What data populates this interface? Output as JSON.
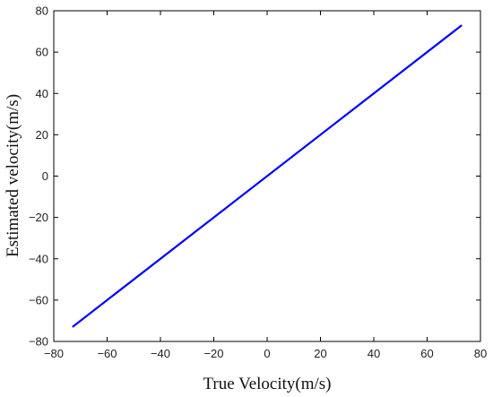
{
  "chart_data": {
    "type": "line",
    "title": "",
    "xlabel": "True Velocity(m/s)",
    "ylabel": "Estimated velocity(m/s)",
    "xlim": [
      -80,
      80
    ],
    "ylim": [
      -80,
      80
    ],
    "xticks": [
      -80,
      -60,
      -40,
      -20,
      0,
      20,
      40,
      60,
      80
    ],
    "yticks": [
      -80,
      -60,
      -40,
      -20,
      0,
      20,
      40,
      60,
      80
    ],
    "xtick_labels": [
      "−80",
      "−60",
      "−40",
      "−20",
      "0",
      "20",
      "40",
      "60",
      "80"
    ],
    "ytick_labels": [
      "−80",
      "−60",
      "−40",
      "−20",
      "0",
      "20",
      "40",
      "60",
      "80"
    ],
    "grid": false,
    "series": [
      {
        "color": "#0000ff",
        "x": [
          -73,
          73
        ],
        "y": [
          -73,
          73
        ]
      }
    ]
  }
}
